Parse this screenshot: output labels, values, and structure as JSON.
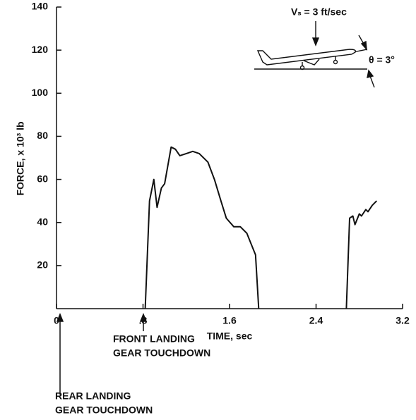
{
  "chart_data": {
    "type": "line",
    "x_label": "TIME, sec",
    "y_label": "FORCE, x 10³ lb",
    "xlim": [
      0,
      3.2
    ],
    "ylim": [
      0,
      140
    ],
    "xticks": [
      0,
      {
        "value": 0.8,
        "label": ".8"
      },
      1.6,
      2.4,
      3.2
    ],
    "yticks": [
      20,
      40,
      60,
      80,
      100,
      120,
      140
    ],
    "x": [
      0.82,
      0.86,
      0.9,
      0.93,
      0.97,
      1.0,
      1.06,
      1.1,
      1.14,
      1.2,
      1.26,
      1.32,
      1.4,
      1.46,
      1.52,
      1.57,
      1.64,
      1.7,
      1.76,
      1.8,
      1.84,
      1.87,
      null,
      2.68,
      2.71,
      2.74,
      2.76,
      2.8,
      2.82,
      2.86,
      2.88,
      2.92,
      2.96
    ],
    "series": [
      {
        "color": "#111111",
        "values": [
          0,
          50,
          60,
          47,
          56,
          58,
          75,
          74,
          71,
          72,
          73,
          72,
          68,
          60,
          50,
          42,
          38,
          38,
          35,
          30,
          25,
          0,
          null,
          0,
          42,
          43,
          39,
          44,
          43,
          46,
          45,
          48,
          50
        ]
      }
    ],
    "annotations": {
      "front": [
        "FRONT LANDING",
        "GEAR TOUCHDOWN"
      ],
      "rear": [
        "REAR LANDING",
        "GEAR TOUCHDOWN"
      ],
      "sink_speed": "Vₛ = 3 ft/sec",
      "angle": "θ = 3°"
    }
  }
}
